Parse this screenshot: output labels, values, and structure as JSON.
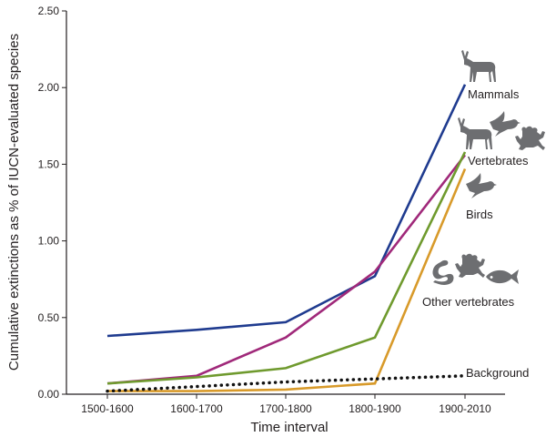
{
  "chart_data": {
    "type": "line",
    "xlabel": "Time interval",
    "ylabel": "Cumulative extinctions as % of IUCN-evaluated species",
    "categories": [
      "1500-1600",
      "1600-1700",
      "1700-1800",
      "1800-1900",
      "1900-2010"
    ],
    "ylim": [
      0,
      2.5
    ],
    "yticks": [
      "0.00",
      "0.50",
      "1.00",
      "1.50",
      "2.00",
      "2.50"
    ],
    "grid": false,
    "series": [
      {
        "name": "Mammals",
        "color": "#1f3b8f",
        "style": "solid",
        "values": [
          0.38,
          0.42,
          0.47,
          0.77,
          2.02
        ]
      },
      {
        "name": "Vertebrates",
        "color": "#a0297a",
        "style": "solid",
        "values": [
          0.07,
          0.12,
          0.37,
          0.8,
          1.56
        ]
      },
      {
        "name": "Birds",
        "color": "#6f9a2e",
        "style": "solid",
        "values": [
          0.07,
          0.11,
          0.17,
          0.37,
          1.58
        ]
      },
      {
        "name": "Other vertebrates",
        "color": "#d89a2a",
        "style": "solid",
        "values": [
          0.02,
          0.02,
          0.03,
          0.07,
          1.47
        ]
      },
      {
        "name": "Background",
        "color": "#111111",
        "style": "dotted",
        "values": [
          0.02,
          0.05,
          0.08,
          0.1,
          0.12
        ]
      }
    ],
    "icons": {
      "mammals": "deer-icon",
      "vertebrates": [
        "deer-icon",
        "bird-icon",
        "frog-icon"
      ],
      "birds": "bird-icon",
      "other_vertebrates": [
        "snake-icon",
        "frog-icon",
        "fish-icon"
      ]
    }
  }
}
